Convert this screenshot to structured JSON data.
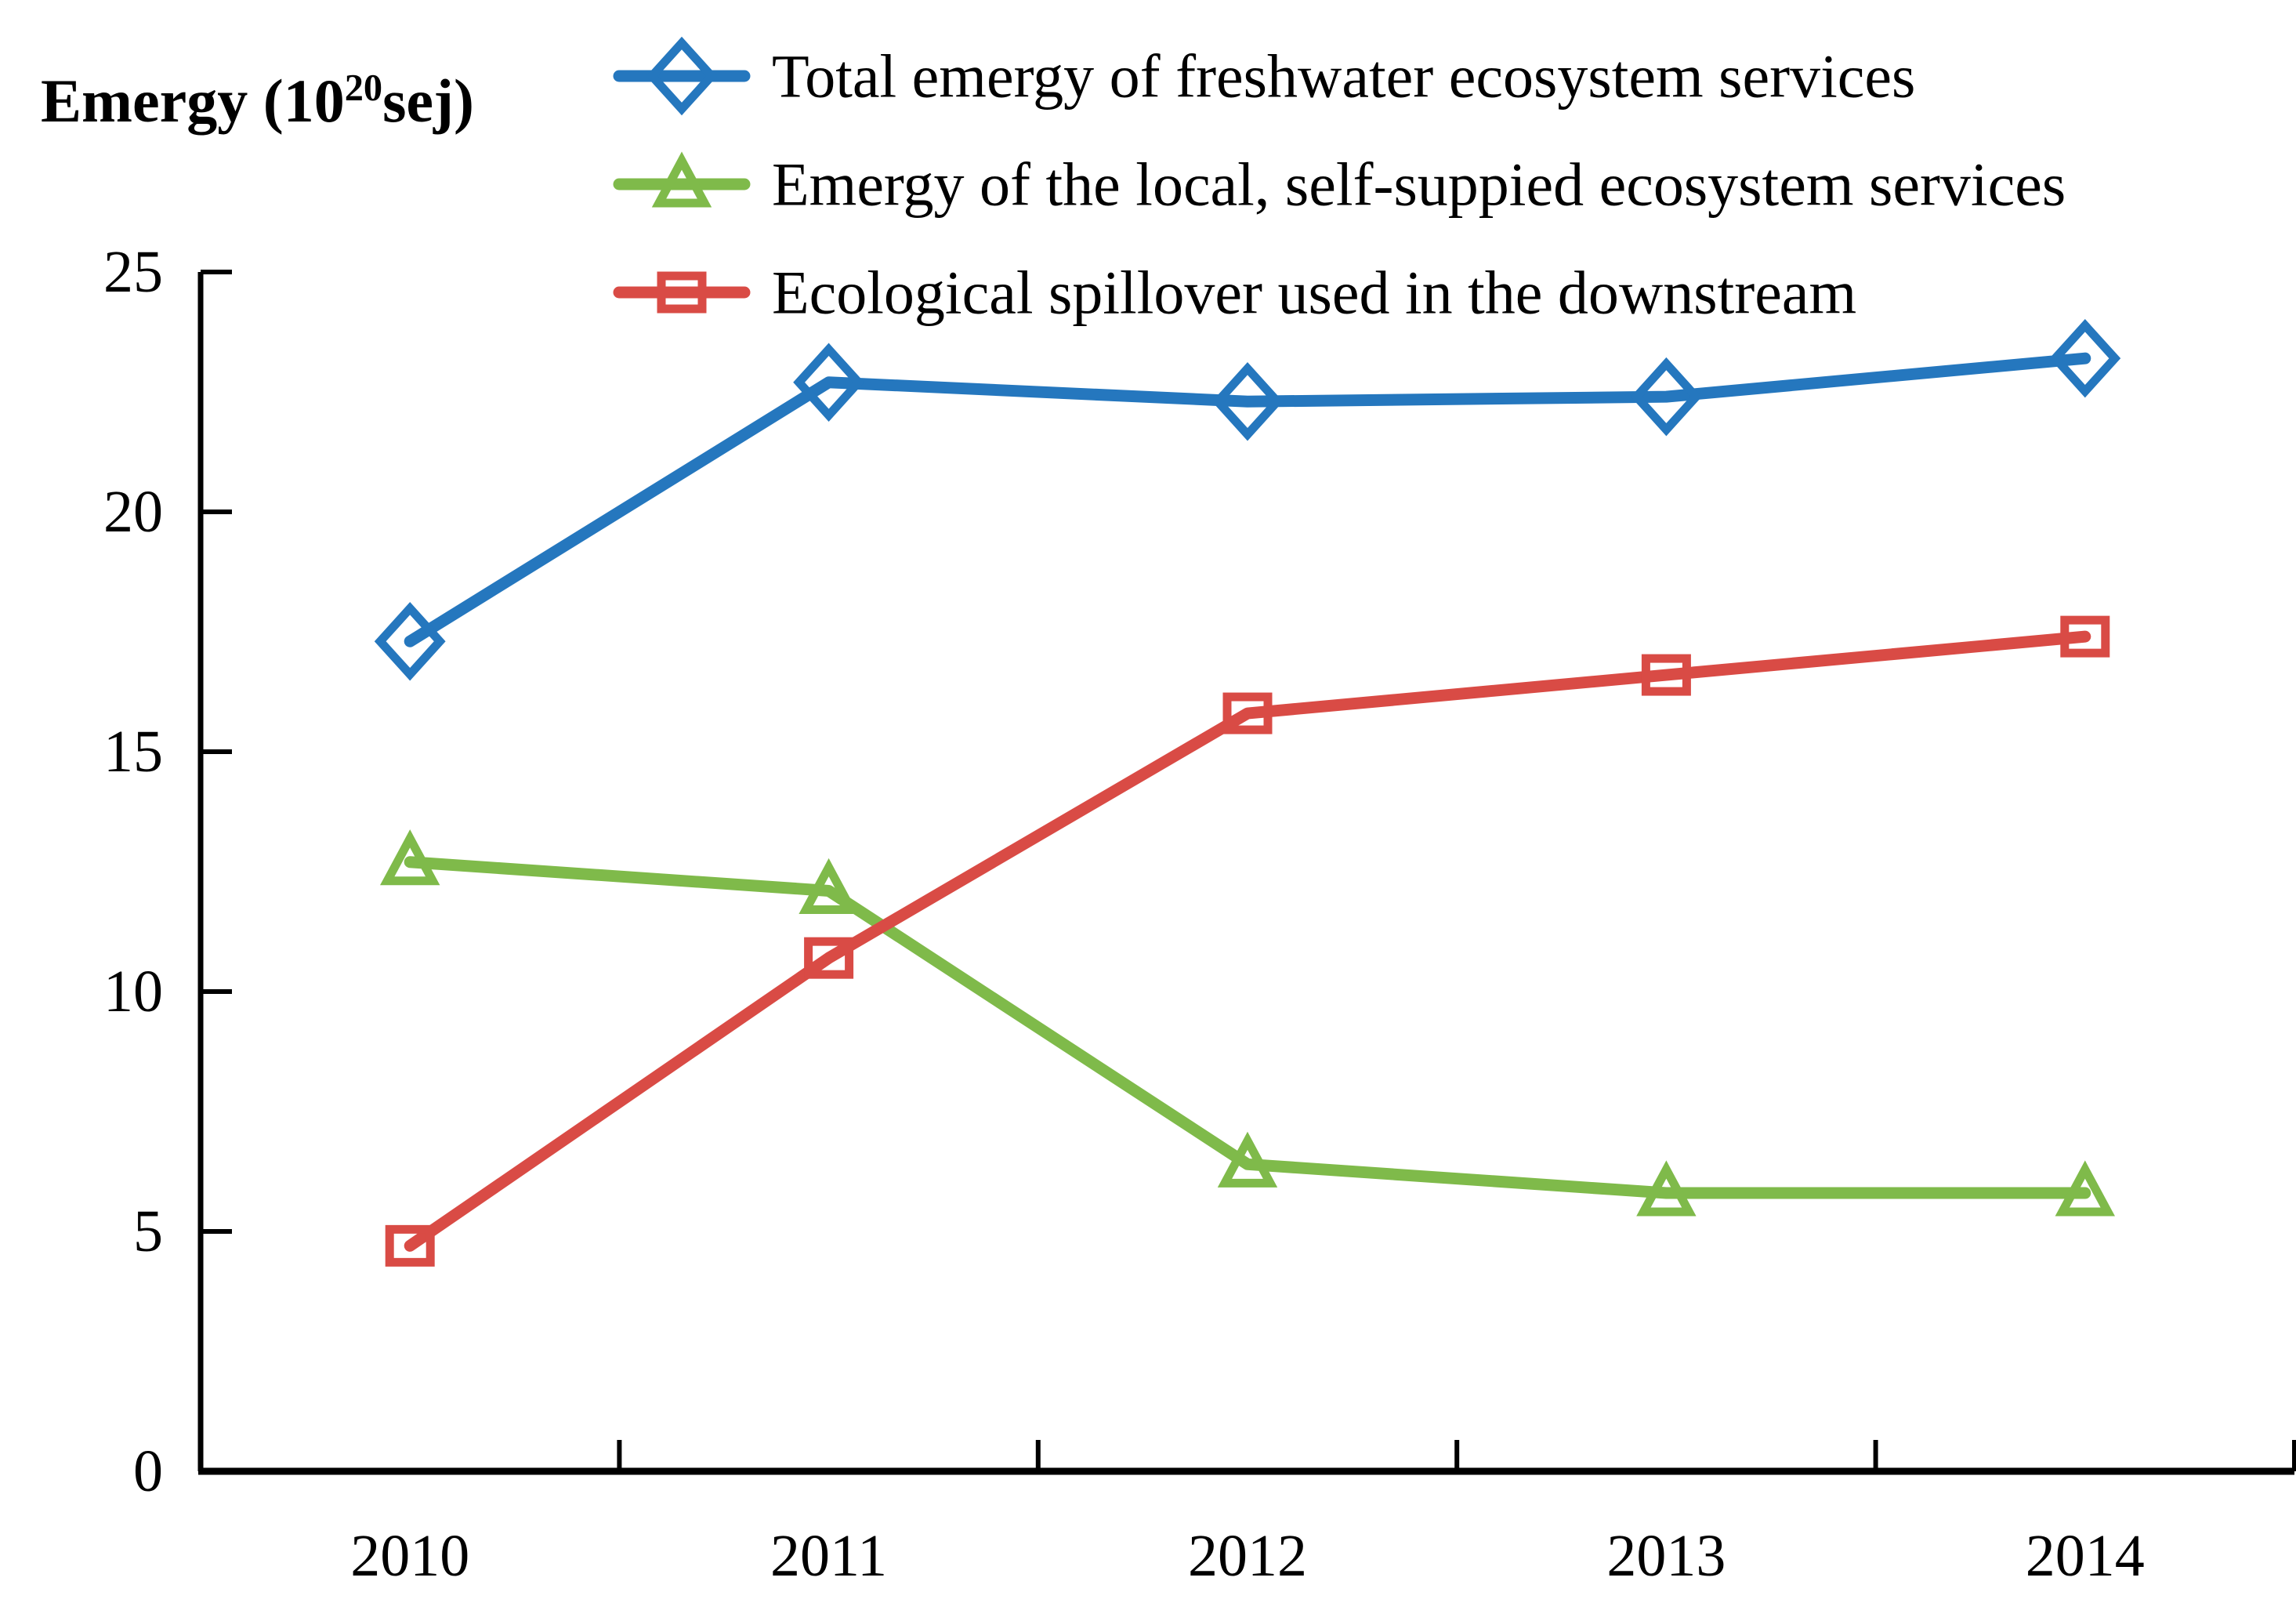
{
  "chart_data": {
    "type": "line",
    "title": {
      "prefix": "Emergy (10",
      "sup": "20",
      "suffix": "sej)"
    },
    "ylabel": "Emergy (10^20 sej)",
    "xlabel": "",
    "categories": [
      "2010",
      "2011",
      "2012",
      "2013",
      "2014"
    ],
    "series": [
      {
        "name": "Total emergy of freshwater ecosystem services",
        "color": "#2577BE",
        "marker": "diamond",
        "values": [
          17.3,
          22.7,
          22.3,
          22.4,
          23.2
        ]
      },
      {
        "name": "Emergy of the local, self-suppied ecosystem services",
        "color": "#7FBA4A",
        "marker": "triangle",
        "values": [
          12.7,
          12.1,
          6.4,
          5.8,
          5.8
        ]
      },
      {
        "name": "Ecological spillover used in the downstream",
        "color": "#D94B45",
        "marker": "square",
        "values": [
          4.7,
          10.7,
          15.8,
          16.6,
          17.4
        ]
      }
    ],
    "ylim": [
      0,
      25
    ],
    "yticks": [
      0,
      5,
      10,
      15,
      20,
      25
    ],
    "grid": false,
    "legend_position": "top-left",
    "axis_color": "#000000",
    "text_color": "#000000",
    "background": "#ffffff"
  }
}
